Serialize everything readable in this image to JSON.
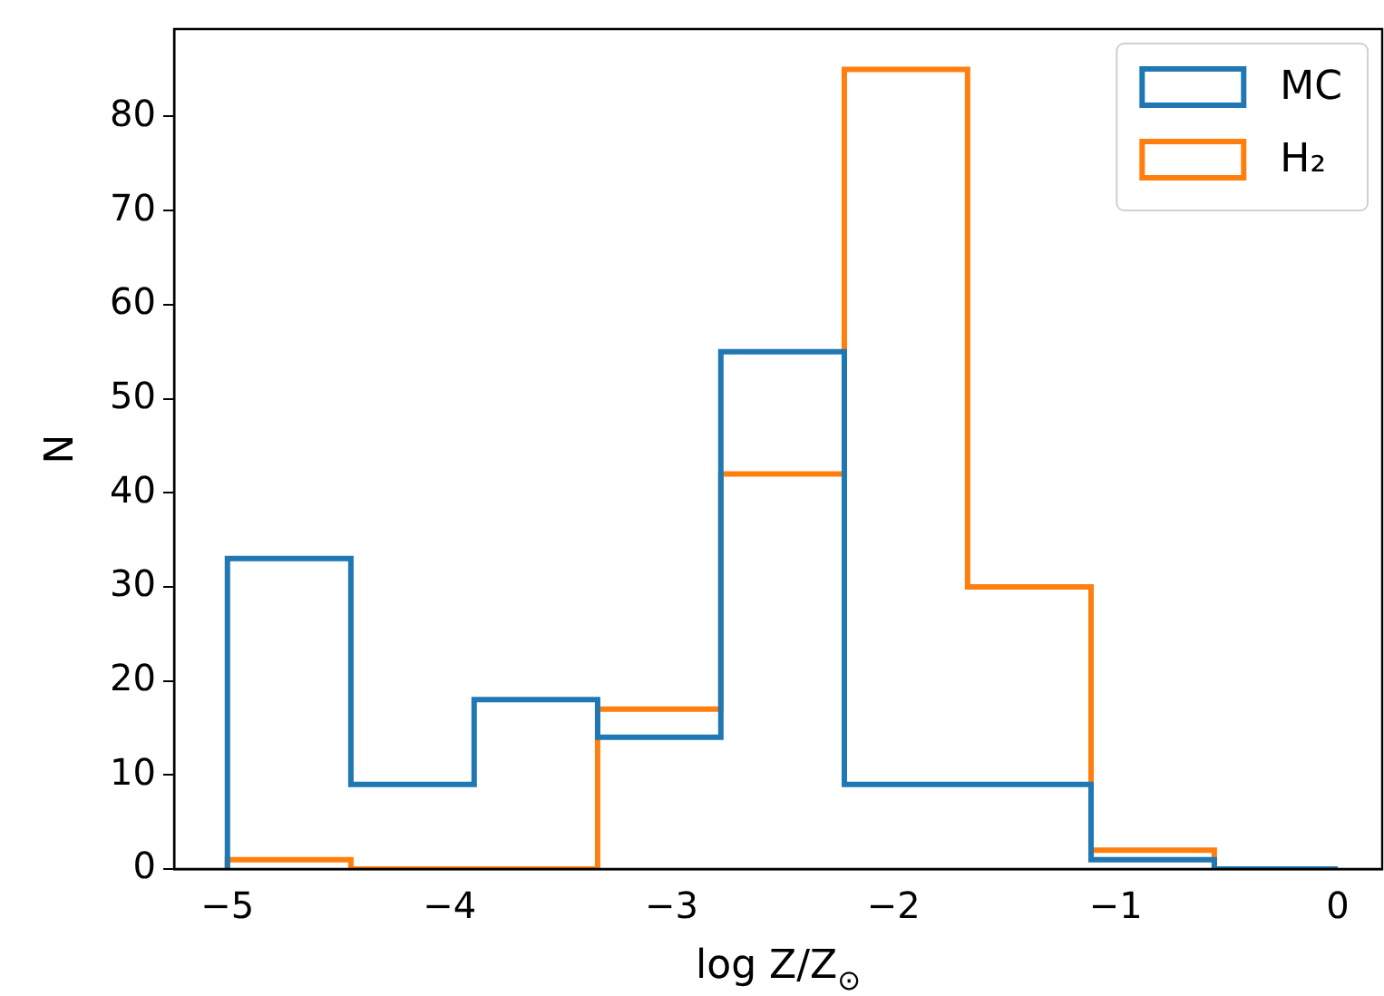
{
  "chart_data": {
    "type": "histogram",
    "xlabel": "log Z/Z$_{⊙}$",
    "ylabel": "N",
    "bins": [
      -5,
      -4.444,
      -3.889,
      -3.333,
      -2.778,
      -2.222,
      -1.667,
      -1.111,
      -0.556,
      0
    ],
    "series": [
      {
        "name": "MC",
        "color": "#1f77b4",
        "values": [
          33,
          9,
          18,
          14,
          55,
          9,
          9,
          1,
          0
        ]
      },
      {
        "name": "H₂",
        "color": "#ff7f0e",
        "values": [
          1,
          0,
          0,
          17,
          42,
          85,
          30,
          2,
          0
        ]
      }
    ],
    "xlim": [
      -5.24,
      0.2
    ],
    "xticks": [
      -5,
      -4,
      -3,
      -2,
      -1,
      0
    ],
    "ylim": [
      0,
      89.3
    ],
    "yticks": [
      0,
      10,
      20,
      30,
      40,
      50,
      60,
      70,
      80
    ],
    "grid": false,
    "legend": "top right"
  }
}
